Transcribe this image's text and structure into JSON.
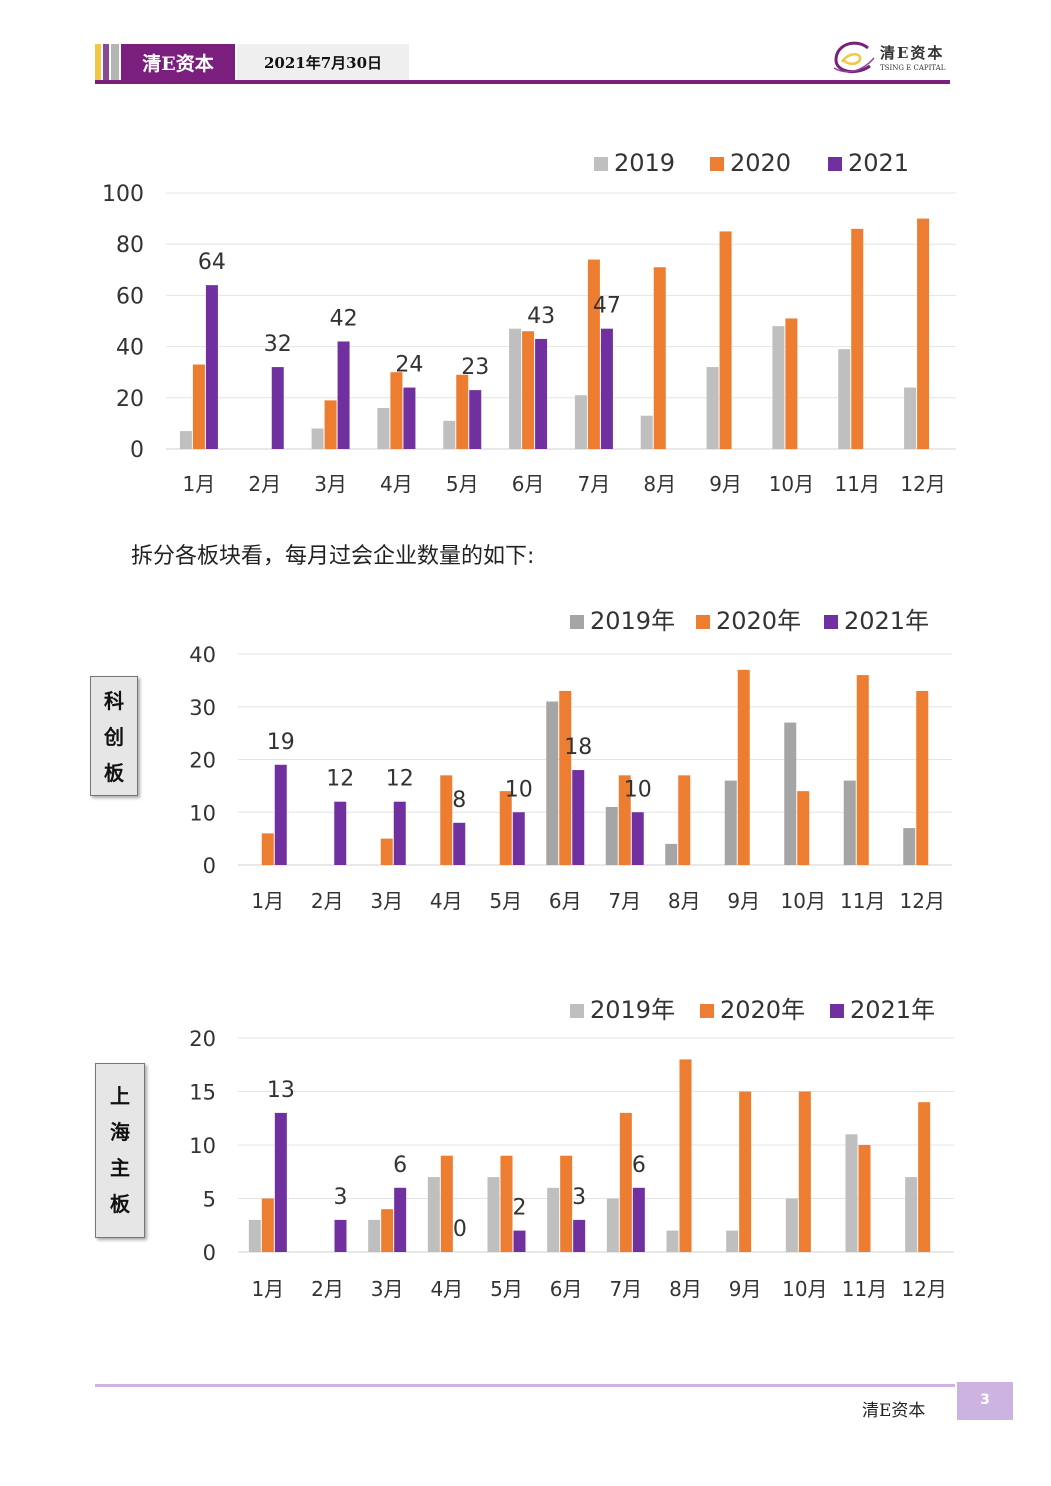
{
  "header": {
    "brand": "清E资本",
    "date": "2021年7月30日",
    "logo_text": "清E资本",
    "logo_sub": "TSING E CAPITAL"
  },
  "intro_text": "拆分各板块看，每月过会企业数量的如下:",
  "side_labels": {
    "star": [
      "科",
      "创",
      "板"
    ],
    "main": [
      "上",
      "海",
      "主",
      "板"
    ]
  },
  "footer": {
    "brand": "清E资本",
    "page": "3"
  },
  "colors": {
    "y2019": "#bfbfbf",
    "y2019b": "#a5a5a5",
    "y2020": "#ed7d31",
    "y2021": "#7030a0",
    "accent": "#7a1f7e"
  },
  "chart_data": [
    {
      "type": "bar",
      "categories": [
        "1月",
        "2月",
        "3月",
        "4月",
        "5月",
        "6月",
        "7月",
        "8月",
        "9月",
        "10月",
        "11月",
        "12月"
      ],
      "series": [
        {
          "name": "2019",
          "values": [
            7,
            0,
            8,
            16,
            11,
            47,
            21,
            13,
            32,
            48,
            39,
            24
          ]
        },
        {
          "name": "2020",
          "values": [
            33,
            0,
            19,
            30,
            29,
            46,
            74,
            71,
            85,
            51,
            86,
            90
          ]
        },
        {
          "name": "2021",
          "values": [
            64,
            32,
            42,
            24,
            23,
            43,
            47,
            null,
            null,
            null,
            null,
            null
          ]
        }
      ],
      "data_labels": [
        "64",
        "32",
        "42",
        "24",
        "23",
        "43",
        "47"
      ],
      "yticks": [
        "0",
        "20",
        "40",
        "60",
        "80",
        "100"
      ],
      "ylim": [
        0,
        100
      ],
      "legend": "top-right"
    },
    {
      "type": "bar",
      "categories": [
        "1月",
        "2月",
        "3月",
        "4月",
        "5月",
        "6月",
        "7月",
        "8月",
        "9月",
        "10月",
        "11月",
        "12月"
      ],
      "series": [
        {
          "name": "2019年",
          "values": [
            0,
            0,
            0,
            0,
            0,
            31,
            11,
            4,
            16,
            27,
            16,
            7
          ]
        },
        {
          "name": "2020年",
          "values": [
            6,
            0,
            5,
            17,
            14,
            33,
            17,
            17,
            37,
            14,
            36,
            33
          ]
        },
        {
          "name": "2021年",
          "values": [
            19,
            12,
            12,
            8,
            10,
            18,
            10,
            null,
            null,
            null,
            null,
            null
          ]
        }
      ],
      "data_labels": [
        "19",
        "12",
        "12",
        "8",
        "10",
        "18",
        "10"
      ],
      "yticks": [
        "0",
        "10",
        "20",
        "30",
        "40"
      ],
      "ylim": [
        0,
        40
      ],
      "legend": "top-right"
    },
    {
      "type": "bar",
      "categories": [
        "1月",
        "2月",
        "3月",
        "4月",
        "5月",
        "6月",
        "7月",
        "8月",
        "9月",
        "10月",
        "11月",
        "12月"
      ],
      "series": [
        {
          "name": "2019年",
          "values": [
            3,
            0,
            3,
            7,
            7,
            6,
            5,
            2,
            2,
            5,
            11,
            7
          ]
        },
        {
          "name": "2020年",
          "values": [
            5,
            0,
            4,
            9,
            9,
            9,
            13,
            18,
            15,
            15,
            10,
            14
          ]
        },
        {
          "name": "2021年",
          "values": [
            13,
            3,
            6,
            0,
            2,
            3,
            6,
            null,
            null,
            null,
            null,
            null
          ]
        }
      ],
      "data_labels": [
        "13",
        "3",
        "6",
        "0",
        "2",
        "3",
        "6"
      ],
      "yticks": [
        "0",
        "5",
        "10",
        "15",
        "20"
      ],
      "ylim": [
        0,
        20
      ],
      "legend": "top-right"
    }
  ]
}
